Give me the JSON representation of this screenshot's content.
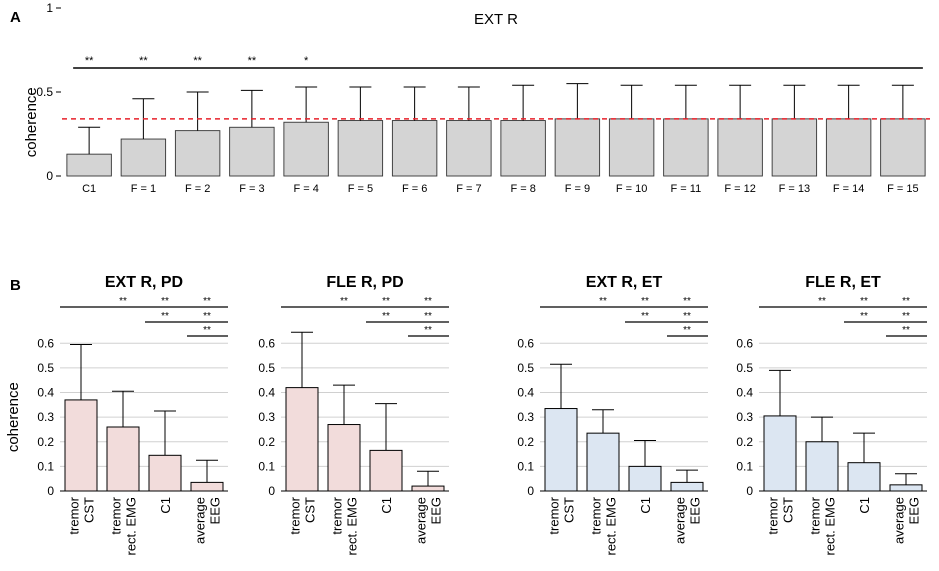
{
  "panels": {
    "A": {
      "label": "A"
    },
    "B": {
      "label": "B"
    }
  },
  "colors": {
    "bar_A": "#d4d4d4",
    "bar_PD": "#f2dcdb",
    "bar_ET": "#dce6f2",
    "reference_line": "#e8202a",
    "gridline": "#d0d0d0"
  },
  "chart_data": [
    {
      "id": "A",
      "type": "bar",
      "title": "EXT R",
      "xlabel": "",
      "ylabel": "coherence",
      "ylim": [
        0,
        1
      ],
      "yticks": [
        0,
        0.5,
        1
      ],
      "ytick_labels": [
        "0",
        "0.5",
        "1"
      ],
      "grid": false,
      "categories": [
        "C1",
        "F = 1",
        "F = 2",
        "F = 3",
        "F = 4",
        "F = 5",
        "F = 6",
        "F = 7",
        "F = 8",
        "F = 9",
        "F = 10",
        "F = 11",
        "F = 12",
        "F = 13",
        "F = 14",
        "F = 15"
      ],
      "values": [
        0.13,
        0.22,
        0.27,
        0.29,
        0.32,
        0.33,
        0.33,
        0.33,
        0.33,
        0.34,
        0.34,
        0.34,
        0.34,
        0.34,
        0.34,
        0.34
      ],
      "errors": [
        0.16,
        0.24,
        0.23,
        0.22,
        0.21,
        0.2,
        0.2,
        0.2,
        0.21,
        0.21,
        0.2,
        0.2,
        0.2,
        0.2,
        0.2,
        0.2
      ],
      "reference_line": {
        "value": 0.34,
        "style": "dashed"
      },
      "significance": {
        "span": [
          "C1",
          "F = 15"
        ],
        "marks": [
          {
            "category": "C1",
            "text": "**"
          },
          {
            "category": "F = 1",
            "text": "**"
          },
          {
            "category": "F = 2",
            "text": "**"
          },
          {
            "category": "F = 3",
            "text": "**"
          },
          {
            "category": "F = 4",
            "text": "*"
          }
        ]
      }
    },
    {
      "id": "B1",
      "type": "bar",
      "title": "EXT R, PD",
      "ylabel": "coherence",
      "ylim": [
        0,
        0.65
      ],
      "yticks": [
        0,
        0.1,
        0.2,
        0.3,
        0.4,
        0.5,
        0.6
      ],
      "ytick_labels": [
        "0",
        "0.1",
        "0.2",
        "0.3",
        "0.4",
        "0.5",
        "0.6"
      ],
      "grid": true,
      "categories": [
        [
          "tremor",
          "CST"
        ],
        [
          "tremor",
          "rect. EMG"
        ],
        [
          "C1"
        ],
        [
          "average",
          "EEG"
        ]
      ],
      "values": [
        0.37,
        0.26,
        0.145,
        0.035
      ],
      "errors": [
        0.225,
        0.145,
        0.18,
        0.09
      ],
      "sig_rows": [
        [
          "",
          "**",
          "**",
          "**"
        ],
        [
          "**",
          "**"
        ],
        [
          "**"
        ]
      ]
    },
    {
      "id": "B2",
      "type": "bar",
      "title": "FLE R, PD",
      "ylabel": "",
      "ylim": [
        0,
        0.65
      ],
      "yticks": [
        0,
        0.1,
        0.2,
        0.3,
        0.4,
        0.5,
        0.6
      ],
      "ytick_labels": [
        "0",
        "0.1",
        "0.2",
        "0.3",
        "0.4",
        "0.5",
        "0.6"
      ],
      "grid": true,
      "categories": [
        [
          "tremor",
          "CST"
        ],
        [
          "tremor",
          "rect. EMG"
        ],
        [
          "C1"
        ],
        [
          "average",
          "EEG"
        ]
      ],
      "values": [
        0.42,
        0.27,
        0.165,
        0.02
      ],
      "errors": [
        0.225,
        0.16,
        0.19,
        0.06
      ],
      "sig_rows": [
        [
          "",
          "**",
          "**",
          "**"
        ],
        [
          "**",
          "**"
        ],
        [
          "**"
        ]
      ]
    },
    {
      "id": "B3",
      "type": "bar",
      "title": "EXT R, ET",
      "ylabel": "",
      "ylim": [
        0,
        0.65
      ],
      "yticks": [
        0,
        0.1,
        0.2,
        0.3,
        0.4,
        0.5,
        0.6
      ],
      "ytick_labels": [
        "0",
        "0.1",
        "0.2",
        "0.3",
        "0.4",
        "0.5",
        "0.6"
      ],
      "grid": true,
      "categories": [
        [
          "tremor",
          "CST"
        ],
        [
          "tremor",
          "rect. EMG"
        ],
        [
          "C1"
        ],
        [
          "average",
          "EEG"
        ]
      ],
      "values": [
        0.335,
        0.235,
        0.1,
        0.035
      ],
      "errors": [
        0.18,
        0.095,
        0.105,
        0.05
      ],
      "sig_rows": [
        [
          "",
          "**",
          "**",
          "**"
        ],
        [
          "**",
          "**"
        ],
        [
          "**"
        ]
      ]
    },
    {
      "id": "B4",
      "type": "bar",
      "title": "FLE R, ET",
      "ylabel": "",
      "ylim": [
        0,
        0.65
      ],
      "yticks": [
        0,
        0.1,
        0.2,
        0.3,
        0.4,
        0.5,
        0.6
      ],
      "ytick_labels": [
        "0",
        "0.1",
        "0.2",
        "0.3",
        "0.4",
        "0.5",
        "0.6"
      ],
      "grid": true,
      "categories": [
        [
          "tremor",
          "CST"
        ],
        [
          "tremor",
          "rect. EMG"
        ],
        [
          "C1"
        ],
        [
          "average",
          "EEG"
        ]
      ],
      "values": [
        0.305,
        0.2,
        0.115,
        0.025
      ],
      "errors": [
        0.185,
        0.1,
        0.12,
        0.045
      ],
      "sig_rows": [
        [
          "",
          "**",
          "**",
          "**"
        ],
        [
          "**",
          "**"
        ],
        [
          "**"
        ]
      ]
    }
  ]
}
